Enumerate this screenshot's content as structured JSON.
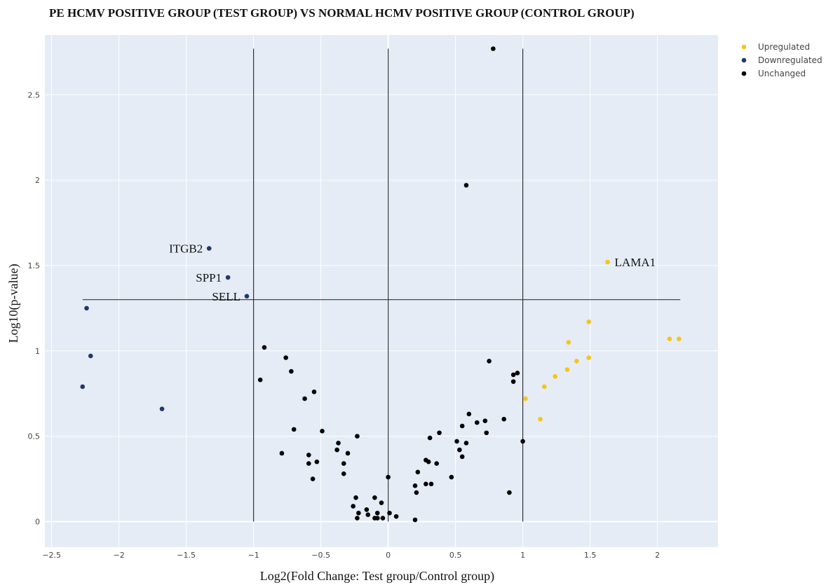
{
  "chart_data": {
    "type": "scatter",
    "title": "PE HCMV POSITIVE GROUP (TEST GROUP) VS NORMAL HCMV POSITIVE GROUP (CONTROL GROUP)",
    "xlabel": "Log2(Fold Change: Test group/Control group)",
    "ylabel": "Log10(p-value)",
    "xlim": [
      -2.55,
      2.45
    ],
    "ylim": [
      -0.15,
      2.85
    ],
    "x_ticks": [
      -2.5,
      -2,
      -1.5,
      -1,
      -0.5,
      0,
      0.5,
      1,
      1.5,
      2
    ],
    "x_tick_labels": [
      "−2.5",
      "−2",
      "−1.5",
      "−1",
      "−0.5",
      "0",
      "0.5",
      "1",
      "1.5",
      "2"
    ],
    "y_ticks": [
      0,
      0.5,
      1,
      1.5,
      2,
      2.5
    ],
    "y_tick_labels": [
      "0",
      "0.5",
      "1",
      "1.5",
      "2",
      "2.5"
    ],
    "grid": true,
    "legend_position": "top-right",
    "background_color": "#e5ecf6",
    "reference_lines": [
      {
        "orientation": "vertical",
        "x": -1,
        "y_range": [
          0,
          2.77
        ]
      },
      {
        "orientation": "vertical",
        "x": 0,
        "y_range": [
          0,
          2.77
        ]
      },
      {
        "orientation": "vertical",
        "x": 1,
        "y_range": [
          0,
          2.77
        ]
      },
      {
        "orientation": "horizontal",
        "y": 1.3,
        "x_range": [
          -2.27,
          2.17
        ]
      }
    ],
    "series": [
      {
        "name": "Upregulated",
        "color": "#f5c518",
        "points": [
          {
            "x": 1.63,
            "y": 1.52,
            "label": "LAMA1"
          },
          {
            "x": 1.49,
            "y": 1.17
          },
          {
            "x": 1.34,
            "y": 1.05
          },
          {
            "x": 2.09,
            "y": 1.07
          },
          {
            "x": 2.16,
            "y": 1.07
          },
          {
            "x": 1.49,
            "y": 0.96
          },
          {
            "x": 1.4,
            "y": 0.94
          },
          {
            "x": 1.33,
            "y": 0.89
          },
          {
            "x": 1.24,
            "y": 0.85
          },
          {
            "x": 1.16,
            "y": 0.79
          },
          {
            "x": 1.02,
            "y": 0.72
          },
          {
            "x": 1.13,
            "y": 0.6
          }
        ]
      },
      {
        "name": "Downregulated",
        "color": "#1f3a68",
        "points": [
          {
            "x": -1.33,
            "y": 1.6,
            "label": "ITGB2"
          },
          {
            "x": -1.19,
            "y": 1.43,
            "label": "SPP1"
          },
          {
            "x": -1.05,
            "y": 1.32,
            "label": "SELL"
          },
          {
            "x": -2.24,
            "y": 1.25
          },
          {
            "x": -2.21,
            "y": 0.97
          },
          {
            "x": -2.27,
            "y": 0.79
          },
          {
            "x": -1.68,
            "y": 0.66
          }
        ]
      },
      {
        "name": "Unchanged",
        "color": "#000000",
        "points": [
          {
            "x": 0.78,
            "y": 2.77
          },
          {
            "x": 0.58,
            "y": 1.97
          },
          {
            "x": -0.92,
            "y": 1.02
          },
          {
            "x": -0.76,
            "y": 0.96
          },
          {
            "x": -0.72,
            "y": 0.88
          },
          {
            "x": -0.95,
            "y": 0.83
          },
          {
            "x": -0.55,
            "y": 0.76
          },
          {
            "x": -0.62,
            "y": 0.72
          },
          {
            "x": -0.7,
            "y": 0.54
          },
          {
            "x": -0.49,
            "y": 0.53
          },
          {
            "x": -0.79,
            "y": 0.4
          },
          {
            "x": -0.59,
            "y": 0.39
          },
          {
            "x": -0.59,
            "y": 0.34
          },
          {
            "x": -0.53,
            "y": 0.35
          },
          {
            "x": -0.56,
            "y": 0.25
          },
          {
            "x": -0.37,
            "y": 0.46
          },
          {
            "x": -0.38,
            "y": 0.42
          },
          {
            "x": -0.3,
            "y": 0.4
          },
          {
            "x": -0.33,
            "y": 0.34
          },
          {
            "x": -0.33,
            "y": 0.28
          },
          {
            "x": -0.23,
            "y": 0.5
          },
          {
            "x": -0.26,
            "y": 0.09
          },
          {
            "x": -0.24,
            "y": 0.14
          },
          {
            "x": -0.22,
            "y": 0.05
          },
          {
            "x": -0.23,
            "y": 0.02
          },
          {
            "x": -0.16,
            "y": 0.07
          },
          {
            "x": -0.15,
            "y": 0.04
          },
          {
            "x": -0.1,
            "y": 0.14
          },
          {
            "x": -0.1,
            "y": 0.02
          },
          {
            "x": -0.08,
            "y": 0.05
          },
          {
            "x": -0.08,
            "y": 0.02
          },
          {
            "x": -0.05,
            "y": 0.11
          },
          {
            "x": -0.04,
            "y": 0.02
          },
          {
            "x": 0.0,
            "y": 0.26
          },
          {
            "x": 0.01,
            "y": 0.05
          },
          {
            "x": 0.06,
            "y": 0.03
          },
          {
            "x": 0.2,
            "y": 0.21
          },
          {
            "x": 0.21,
            "y": 0.17
          },
          {
            "x": 0.22,
            "y": 0.29
          },
          {
            "x": 0.2,
            "y": 0.01
          },
          {
            "x": 0.28,
            "y": 0.36
          },
          {
            "x": 0.3,
            "y": 0.35
          },
          {
            "x": 0.28,
            "y": 0.22
          },
          {
            "x": 0.32,
            "y": 0.22
          },
          {
            "x": 0.31,
            "y": 0.49
          },
          {
            "x": 0.36,
            "y": 0.34
          },
          {
            "x": 0.38,
            "y": 0.52
          },
          {
            "x": 0.47,
            "y": 0.26
          },
          {
            "x": 0.51,
            "y": 0.47
          },
          {
            "x": 0.53,
            "y": 0.42
          },
          {
            "x": 0.55,
            "y": 0.38
          },
          {
            "x": 0.55,
            "y": 0.56
          },
          {
            "x": 0.58,
            "y": 0.46
          },
          {
            "x": 0.6,
            "y": 0.63
          },
          {
            "x": 0.66,
            "y": 0.58
          },
          {
            "x": 0.72,
            "y": 0.59
          },
          {
            "x": 0.73,
            "y": 0.52
          },
          {
            "x": 0.75,
            "y": 0.94
          },
          {
            "x": 0.86,
            "y": 0.6
          },
          {
            "x": 0.9,
            "y": 0.17
          },
          {
            "x": 0.93,
            "y": 0.86
          },
          {
            "x": 0.93,
            "y": 0.82
          },
          {
            "x": 0.96,
            "y": 0.87
          },
          {
            "x": 1.0,
            "y": 0.47
          }
        ]
      }
    ]
  }
}
